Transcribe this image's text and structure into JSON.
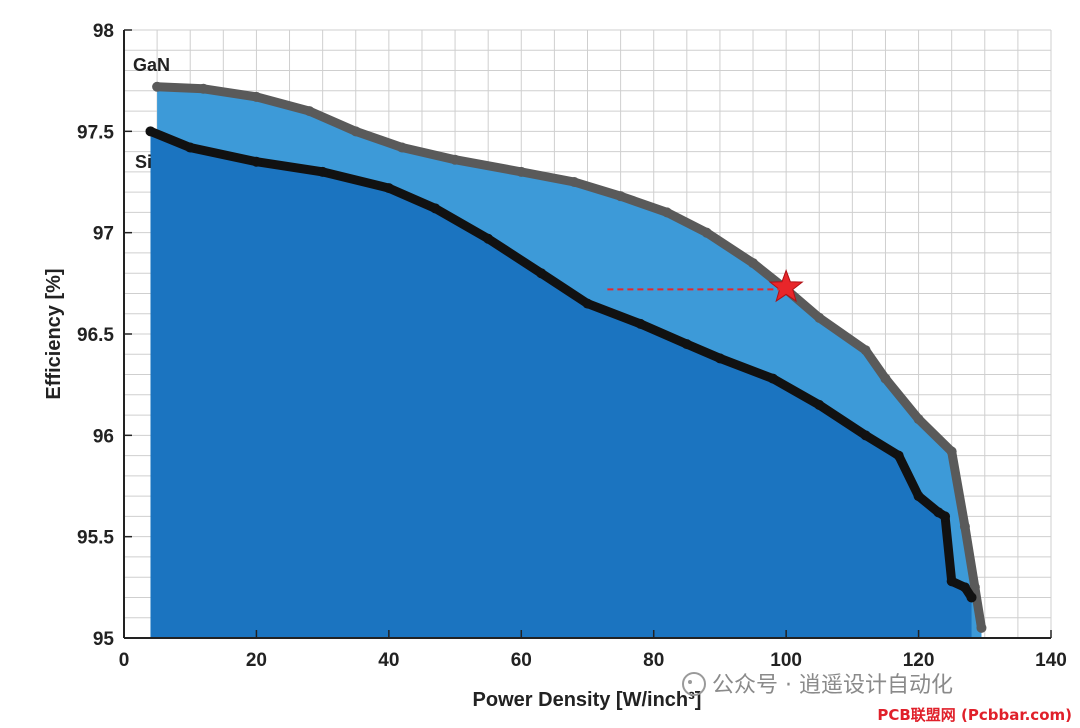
{
  "chart_data": {
    "type": "scatter",
    "title": "",
    "xlabel": "Power Density [W/inch³]",
    "ylabel": "Efficiency [%]",
    "xlim": [
      0,
      140
    ],
    "ylim": [
      95,
      98
    ],
    "xticks": [
      0,
      20,
      40,
      60,
      80,
      100,
      120,
      140
    ],
    "xtick_labels": [
      "0",
      "20",
      "40",
      "60",
      "80",
      "100",
      "120",
      "140"
    ],
    "yticks": [
      95,
      95.5,
      96,
      96.5,
      97,
      97.5,
      98
    ],
    "ytick_labels": [
      "95",
      "95.5",
      "96",
      "96.5",
      "97",
      "97.5",
      "98"
    ],
    "grid": true,
    "series": [
      {
        "name": "GaN",
        "kind": "pareto-front",
        "color": "#5a5a5a",
        "fill_color": "#3d9ad8",
        "x": [
          5,
          12,
          20,
          28,
          35,
          42,
          50,
          60,
          68,
          75,
          82,
          88,
          95,
          100,
          105,
          112,
          115,
          120,
          125,
          127,
          128.5,
          129.5
        ],
        "y": [
          97.72,
          97.71,
          97.67,
          97.6,
          97.5,
          97.42,
          97.36,
          97.3,
          97.25,
          97.18,
          97.1,
          97.0,
          96.85,
          96.72,
          96.58,
          96.42,
          96.28,
          96.08,
          95.92,
          95.55,
          95.25,
          95.05
        ]
      },
      {
        "name": "Si",
        "kind": "pareto-front",
        "color": "#111111",
        "fill_color": "#1b74c0",
        "x": [
          4,
          10,
          20,
          30,
          40,
          47,
          55,
          63,
          70,
          78,
          85,
          90,
          98,
          105,
          112,
          117,
          120,
          123,
          124,
          125,
          127,
          128
        ],
        "y": [
          97.5,
          97.42,
          97.35,
          97.3,
          97.22,
          97.12,
          96.97,
          96.8,
          96.65,
          96.55,
          96.45,
          96.38,
          96.28,
          96.15,
          96.0,
          95.9,
          95.7,
          95.62,
          95.6,
          95.28,
          95.25,
          95.2
        ]
      }
    ],
    "annotations": [
      {
        "type": "star-marker",
        "x": 100,
        "y": 96.73,
        "color": "#e8262a"
      },
      {
        "type": "dashed-line",
        "x_from": 73,
        "x_to": 100,
        "y": 96.72,
        "color": "#e8262a"
      }
    ]
  },
  "watermark": {
    "text": "公众号 · 逍遥设计自动化",
    "source": "PCB联盟网 (Pcbbar.com)"
  }
}
